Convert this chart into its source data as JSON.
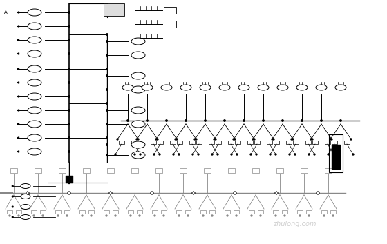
{
  "bg_color": "#ffffff",
  "line_color": "#000000",
  "gray_color": "#888888",
  "light_gray": "#cccccc",
  "dark_gray": "#555555",
  "watermark_color": "#bbbbbb",
  "fig_width": 5.6,
  "fig_height": 3.54,
  "dpi": 100,
  "title": "",
  "watermark": "zhulong.com"
}
